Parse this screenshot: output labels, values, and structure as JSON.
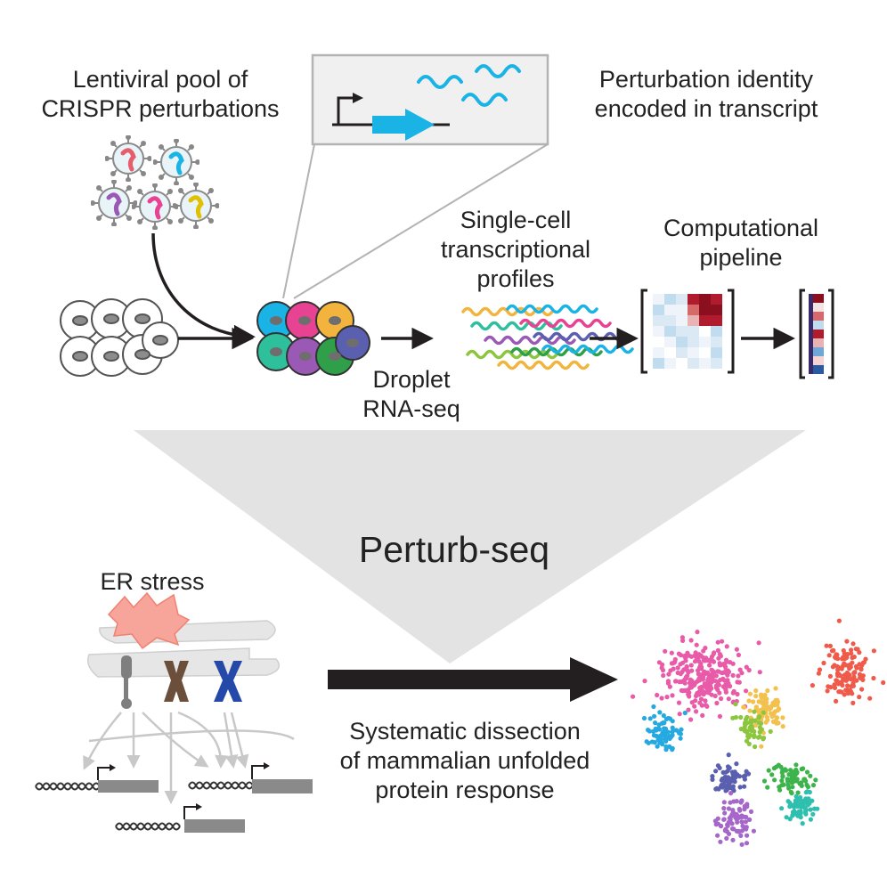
{
  "labels": {
    "lentiviral": [
      "Lentiviral pool of",
      "CRISPR perturbations"
    ],
    "perturbation_identity": [
      "Perturbation identity",
      "encoded in transcript"
    ],
    "single_cell": [
      "Single-cell",
      "transcriptional",
      "profiles"
    ],
    "computational": [
      "Computational",
      "pipeline"
    ],
    "droplet": [
      "Droplet",
      "RNA-seq"
    ],
    "title": "Perturb-seq",
    "er_stress": "ER stress",
    "systematic": [
      "Systematic dissection",
      "of mammalian unfolded",
      "protein response"
    ]
  },
  "colors": {
    "cyan": "#1ab3e6",
    "cell_gray": "#c9c9c9",
    "funnel_gray": "#e3e3e3",
    "arrow_black": "#231f20",
    "heatmap_red": "#b01c2e",
    "heatmap_blue": "#6fa8d6"
  },
  "icons": [
    "lentivirus-particle-icon",
    "promoter-arrow-icon",
    "transcript-wave-icon",
    "cell-icon",
    "er-membrane-icon",
    "receptor-icon",
    "dna-helix-icon",
    "heatmap-matrix-icon",
    "tsne-cluster-plot"
  ]
}
